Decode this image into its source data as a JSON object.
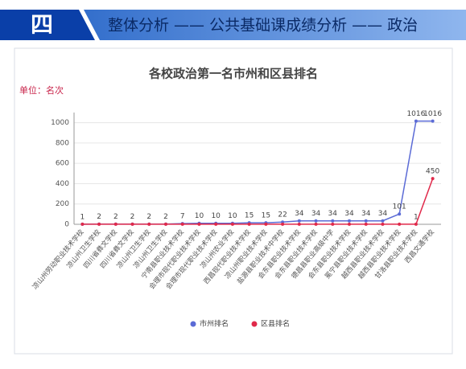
{
  "header": {
    "number": "四",
    "title": "整体分析 —— 公共基础课成绩分析 —— 政治"
  },
  "chart_data": {
    "type": "line",
    "title": "各校政治第一名市州和区县排名",
    "unit": "单位：名次",
    "categories": [
      "凉山州劳动职业技术学校",
      "凉山州卫生学校",
      "四川省彝文学校",
      "四川省彝文学校",
      "凉山州卫生学校",
      "凉山州卫生学校",
      "宁南县职业技术学校",
      "会理市现代职业技术学校",
      "会理市现代职业技术学校",
      "凉山州农业学校",
      "西昌现代职业技术学校",
      "凉山州职业技术学校",
      "盐源县职业技术中学校",
      "会东县职业技术学校",
      "会东县职业技术学校",
      "德昌县职业高级中学",
      "会东县职业技术学校",
      "冕宁县职业技术学校",
      "越西县职业技术学校",
      "越西县职业技术学校",
      "甘洛县职业技术学校",
      "西昌文通学校"
    ],
    "series": [
      {
        "name": "市州排名",
        "color": "#5b6bd6",
        "values": [
          1,
          2,
          2,
          2,
          2,
          2,
          7,
          10,
          10,
          10,
          15,
          15,
          22,
          34,
          34,
          34,
          34,
          34,
          34,
          101,
          1016,
          1016
        ]
      },
      {
        "name": "区县排名",
        "color": "#e0294a",
        "values": [
          1,
          1,
          1,
          1,
          1,
          1,
          1,
          1,
          1,
          1,
          1,
          1,
          1,
          1,
          1,
          1,
          1,
          1,
          1,
          1,
          1,
          450
        ],
        "value_labels": [
          null,
          null,
          null,
          null,
          null,
          null,
          null,
          null,
          null,
          null,
          null,
          null,
          null,
          null,
          null,
          null,
          null,
          null,
          null,
          null,
          "1",
          "450"
        ]
      }
    ],
    "ylim": [
      0,
      1100
    ],
    "yticks": [
      0,
      200,
      400,
      600,
      800,
      1000
    ],
    "grid": true,
    "legend": "bottom"
  }
}
